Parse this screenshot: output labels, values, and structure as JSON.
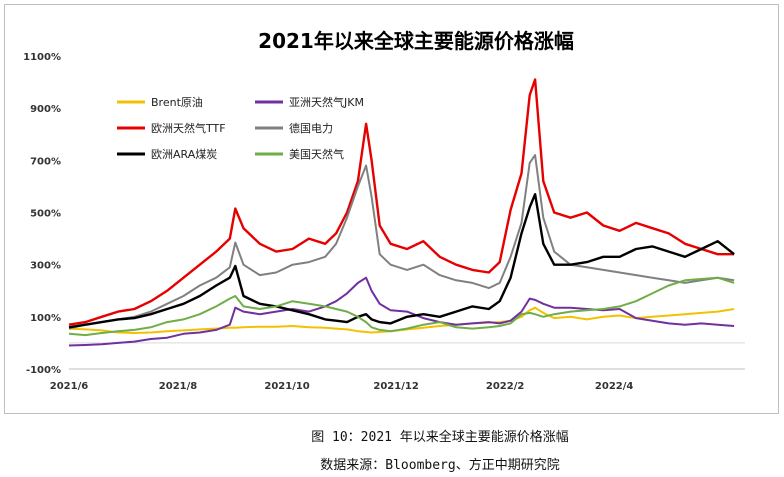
{
  "chart_data": {
    "type": "line",
    "title": "2021年以来全球主要能源价格涨幅",
    "xlabel": "",
    "ylabel": "",
    "ylim": [
      -100,
      1100
    ],
    "yticks": [
      "1100%",
      "900%",
      "700%",
      "500%",
      "300%",
      "100%",
      "-100%"
    ],
    "ytick_values": [
      1100,
      900,
      700,
      500,
      300,
      100,
      -100
    ],
    "xticks": [
      "2021/6",
      "2021/8",
      "2021/10",
      "2021/12",
      "2022/2",
      "2022/4"
    ],
    "xtick_values": [
      0,
      2,
      4,
      6,
      8,
      10
    ],
    "xlim": [
      0,
      12.4
    ],
    "grid": false,
    "legend_position": "top-left",
    "x": [
      0,
      0.3,
      0.6,
      0.9,
      1.2,
      1.5,
      1.8,
      2.1,
      2.4,
      2.7,
      2.95,
      3.05,
      3.2,
      3.5,
      3.8,
      4.1,
      4.4,
      4.7,
      4.9,
      5.1,
      5.3,
      5.45,
      5.55,
      5.7,
      5.9,
      6.2,
      6.5,
      6.8,
      7.1,
      7.4,
      7.7,
      7.9,
      8.1,
      8.3,
      8.45,
      8.55,
      8.7,
      8.9,
      9.2,
      9.5,
      9.8,
      10.1,
      10.4,
      10.7,
      11.0,
      11.3,
      11.6,
      11.9,
      12.2
    ],
    "series": [
      {
        "name": "Brent原油",
        "color": "#f2c200",
        "values": [
          55,
          52,
          48,
          40,
          38,
          40,
          45,
          48,
          52,
          55,
          58,
          58,
          60,
          62,
          62,
          65,
          60,
          58,
          55,
          52,
          45,
          42,
          40,
          42,
          45,
          52,
          58,
          65,
          70,
          75,
          78,
          80,
          85,
          100,
          125,
          135,
          115,
          95,
          100,
          90,
          100,
          105,
          95,
          100,
          105,
          110,
          115,
          120,
          130
        ]
      },
      {
        "name": "亚洲天然气JKM",
        "color": "#7030a0",
        "values": [
          -10,
          -8,
          -5,
          0,
          5,
          15,
          20,
          35,
          40,
          50,
          70,
          135,
          120,
          110,
          120,
          130,
          120,
          140,
          160,
          190,
          230,
          250,
          200,
          150,
          125,
          120,
          95,
          80,
          70,
          75,
          80,
          75,
          85,
          120,
          170,
          165,
          150,
          135,
          135,
          130,
          125,
          130,
          95,
          85,
          75,
          70,
          75,
          70,
          65
        ]
      },
      {
        "name": "欧洲天然气TTF",
        "color": "#e60000",
        "values": [
          70,
          80,
          100,
          120,
          130,
          160,
          200,
          250,
          300,
          350,
          400,
          515,
          440,
          380,
          350,
          360,
          400,
          380,
          420,
          500,
          620,
          840,
          700,
          450,
          380,
          360,
          390,
          330,
          300,
          280,
          270,
          310,
          510,
          650,
          950,
          1010,
          620,
          500,
          480,
          500,
          450,
          430,
          460,
          440,
          420,
          380,
          360,
          340,
          340
        ]
      },
      {
        "name": "德国电力",
        "color": "#808080",
        "values": [
          55,
          70,
          80,
          90,
          100,
          120,
          150,
          180,
          220,
          250,
          290,
          385,
          300,
          260,
          270,
          300,
          310,
          330,
          380,
          480,
          600,
          680,
          560,
          340,
          300,
          280,
          300,
          260,
          240,
          230,
          210,
          230,
          330,
          460,
          690,
          720,
          480,
          350,
          300,
          290,
          280,
          270,
          260,
          250,
          240,
          230,
          240,
          250,
          240
        ]
      },
      {
        "name": "欧洲ARA煤炭",
        "color": "#000000",
        "values": [
          60,
          70,
          80,
          90,
          95,
          110,
          130,
          150,
          180,
          220,
          250,
          295,
          180,
          150,
          140,
          125,
          110,
          90,
          85,
          80,
          100,
          110,
          90,
          80,
          75,
          100,
          110,
          100,
          120,
          140,
          130,
          160,
          250,
          420,
          520,
          570,
          380,
          300,
          300,
          310,
          330,
          330,
          360,
          370,
          350,
          330,
          360,
          390,
          340
        ]
      },
      {
        "name": "美国天然气",
        "color": "#70ad47",
        "values": [
          35,
          30,
          38,
          45,
          50,
          60,
          80,
          90,
          110,
          140,
          170,
          180,
          140,
          130,
          140,
          160,
          150,
          140,
          130,
          120,
          100,
          80,
          60,
          50,
          45,
          55,
          70,
          80,
          60,
          55,
          60,
          65,
          75,
          110,
          115,
          110,
          100,
          110,
          120,
          125,
          130,
          140,
          160,
          190,
          220,
          240,
          245,
          250,
          230
        ]
      }
    ]
  },
  "captions": {
    "figure": "图 10：2021 年以来全球主要能源价格涨幅",
    "source": "数据来源：Bloomberg、方正中期研究院"
  }
}
